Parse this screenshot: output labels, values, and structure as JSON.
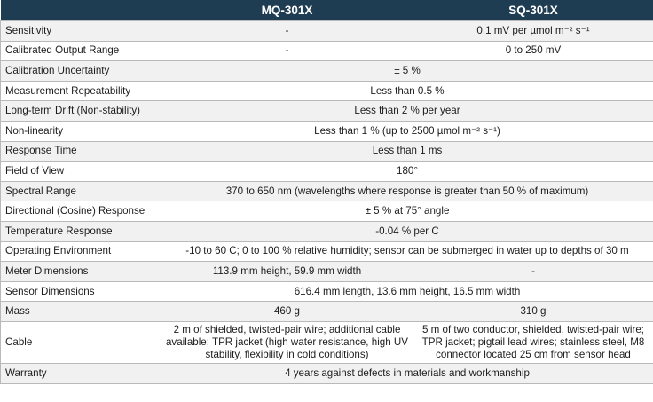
{
  "header": {
    "col0": "",
    "col1": "MQ-301X",
    "col2": "SQ-301X"
  },
  "rows": [
    {
      "label": "Sensitivity",
      "mq": "-",
      "sq": "0.1 mV per µmol m⁻² s⁻¹"
    },
    {
      "label": "Calibrated Output Range",
      "mq": "-",
      "sq": "0 to 250 mV"
    },
    {
      "label": "Calibration Uncertainty",
      "both": "± 5 %"
    },
    {
      "label": "Measurement Repeatability",
      "both": "Less than 0.5 %"
    },
    {
      "label": "Long-term Drift (Non-stability)",
      "both": "Less than 2 % per year"
    },
    {
      "label": "Non-linearity",
      "both": "Less than 1 % (up to 2500 µmol m⁻² s⁻¹)"
    },
    {
      "label": "Response Time",
      "both": "Less than 1 ms"
    },
    {
      "label": "Field of View",
      "both": "180°"
    },
    {
      "label": "Spectral Range",
      "both": "370 to 650 nm (wavelengths where response is greater than 50 % of maximum)"
    },
    {
      "label": "Directional (Cosine) Response",
      "both": "± 5 % at 75° angle"
    },
    {
      "label": "Temperature Response",
      "both": "-0.04 % per C"
    },
    {
      "label": "Operating Environment",
      "both": "-10 to 60 C; 0 to 100 % relative humidity; sensor can be submerged in water up to depths of 30 m"
    },
    {
      "label": "Meter Dimensions",
      "mq": "113.9 mm height, 59.9 mm width",
      "sq": "-"
    },
    {
      "label": "Sensor Dimensions",
      "both": "616.4 mm length, 13.6 mm height, 16.5 mm width"
    },
    {
      "label": "Mass",
      "mq": "460 g",
      "sq": "310 g"
    },
    {
      "label": "Cable",
      "mq": "2 m of shielded, twisted-pair wire; additional cable available; TPR jacket (high water resistance, high UV stability, flexibility in cold conditions)",
      "sq": "5 m of two conductor, shielded, twisted-pair wire; TPR jacket; pigtail lead wires; stainless steel, M8 connector located 25 cm from sensor head"
    },
    {
      "label": "Warranty",
      "both": "4 years against defects in materials and workmanship"
    }
  ],
  "colors": {
    "header_bg": "#1f3d52",
    "header_text": "#ffffff",
    "row_alt": "#f1f1f1",
    "border": "#b9b9b9"
  }
}
